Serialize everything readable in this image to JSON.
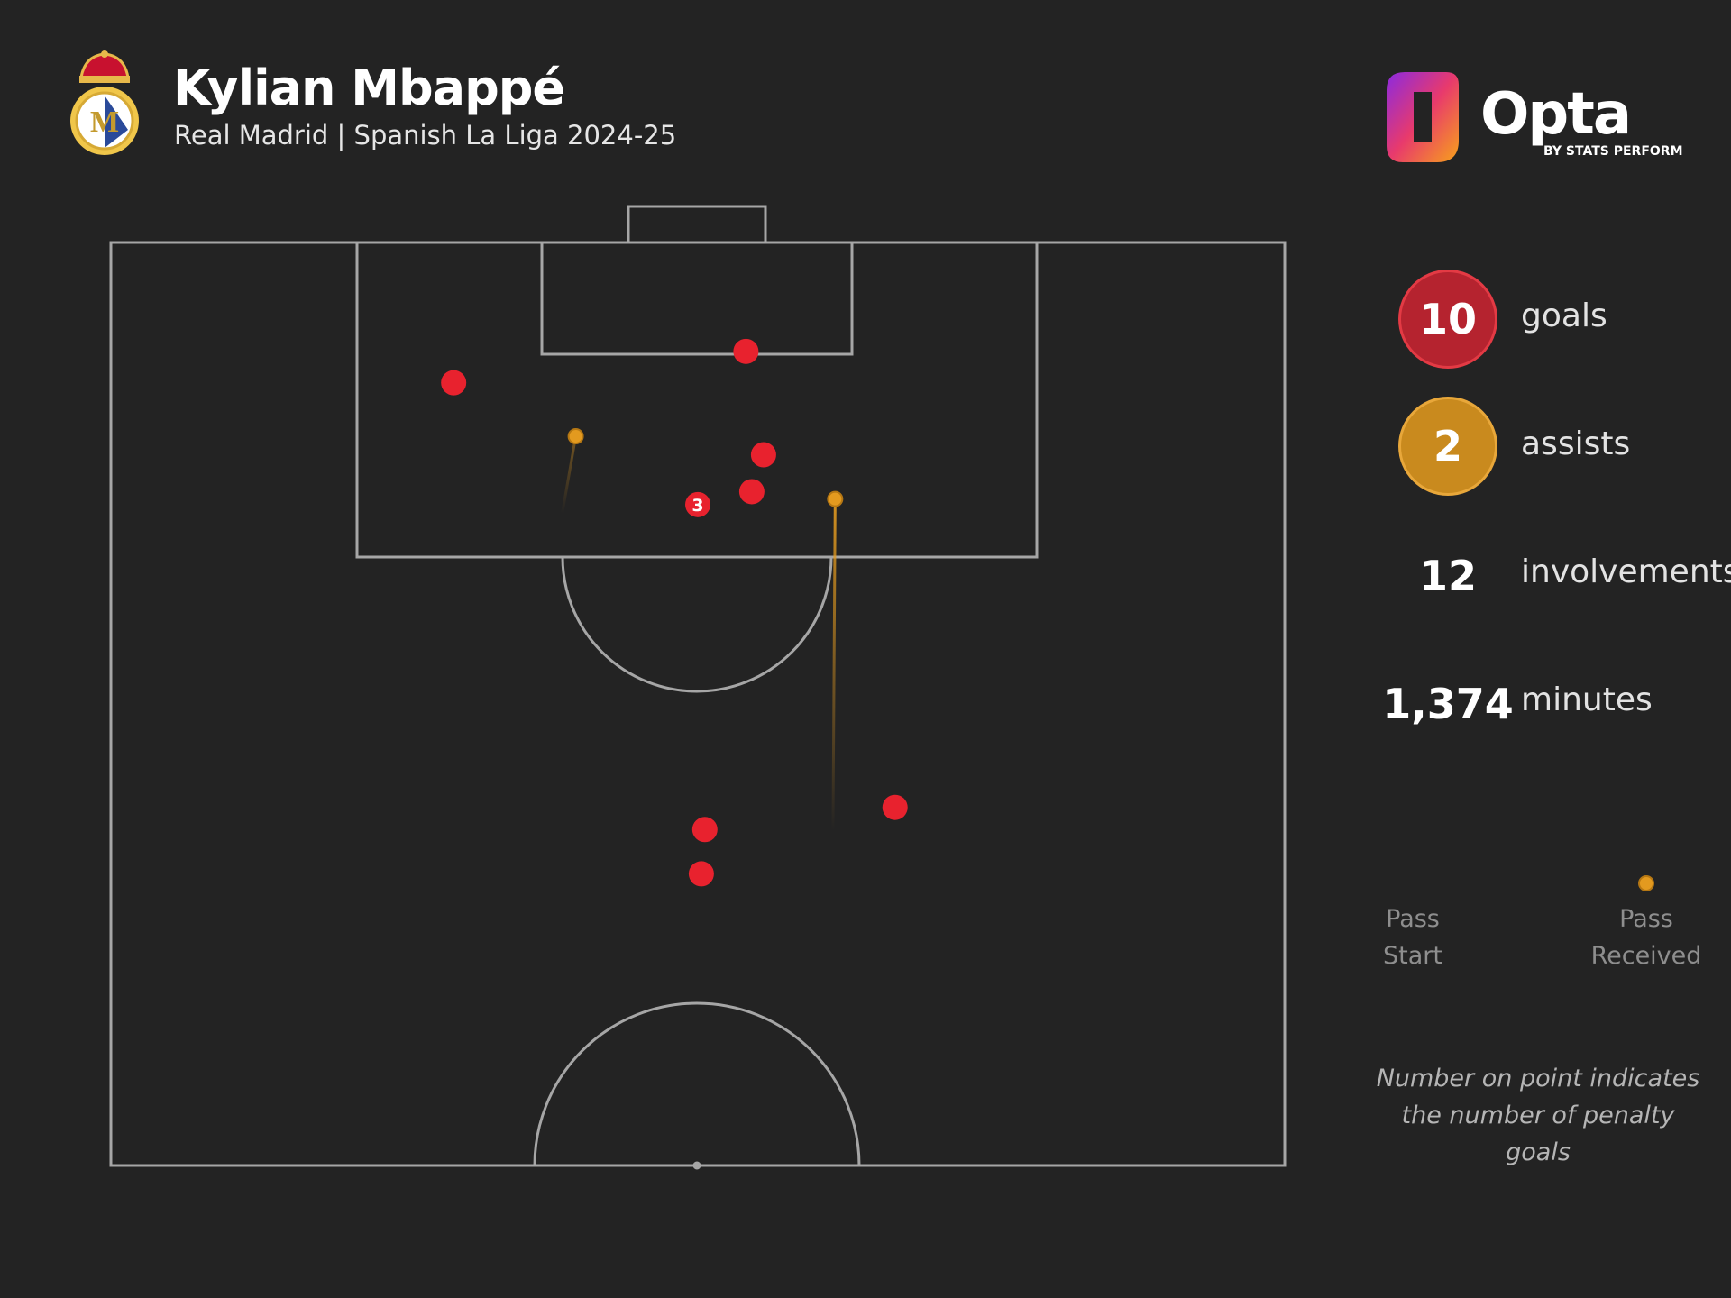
{
  "header": {
    "title": "Kylian Mbappé",
    "subtitle": "Real Madrid | Spanish La Liga 2024-25",
    "club_crest_icon": "real-madrid-crest-icon",
    "brand": {
      "name": "Opta",
      "byline": "BY STATS PERFORM",
      "logo_icon": "opta-logo-icon"
    }
  },
  "stats": {
    "goals": {
      "value": "10",
      "label": "goals",
      "color": "#b5232f"
    },
    "assists": {
      "value": "2",
      "label": "assists",
      "color": "#c98a1e"
    },
    "involvements": {
      "value": "12",
      "label": "involvements"
    },
    "minutes": {
      "value": "1,374",
      "label": "minutes"
    }
  },
  "legend": {
    "start_label": "Pass\nStart",
    "end_label": "Pass\nReceived"
  },
  "note": "Number on point indicates\nthe number of penalty goals",
  "colors": {
    "background": "#232323",
    "pitch_line": "#a6a6a6",
    "goal": "#e8222e",
    "assist": "#e39a1f"
  },
  "chart_data": {
    "type": "scatter",
    "pitch": {
      "length": 100,
      "width": 100,
      "view": "attacking half"
    },
    "goals": [
      {
        "x": 94.1,
        "y": 54.1
      },
      {
        "x": 92.4,
        "y": 29.2
      },
      {
        "x": 88.5,
        "y": 55.6
      },
      {
        "x": 86.5,
        "y": 54.6
      },
      {
        "x": 85.8,
        "y": 50.0,
        "count": 3
      },
      {
        "x": 69.4,
        "y": 66.8
      },
      {
        "x": 68.2,
        "y": 50.6
      },
      {
        "x": 65.8,
        "y": 50.3
      }
    ],
    "assists": [
      {
        "start_x": 66.5,
        "start_y": 61.5,
        "end_x": 86.1,
        "end_y": 61.7
      },
      {
        "start_x": 78.6,
        "start_y": 36.6,
        "end_x": 89.5,
        "end_y": 39.6
      }
    ]
  }
}
